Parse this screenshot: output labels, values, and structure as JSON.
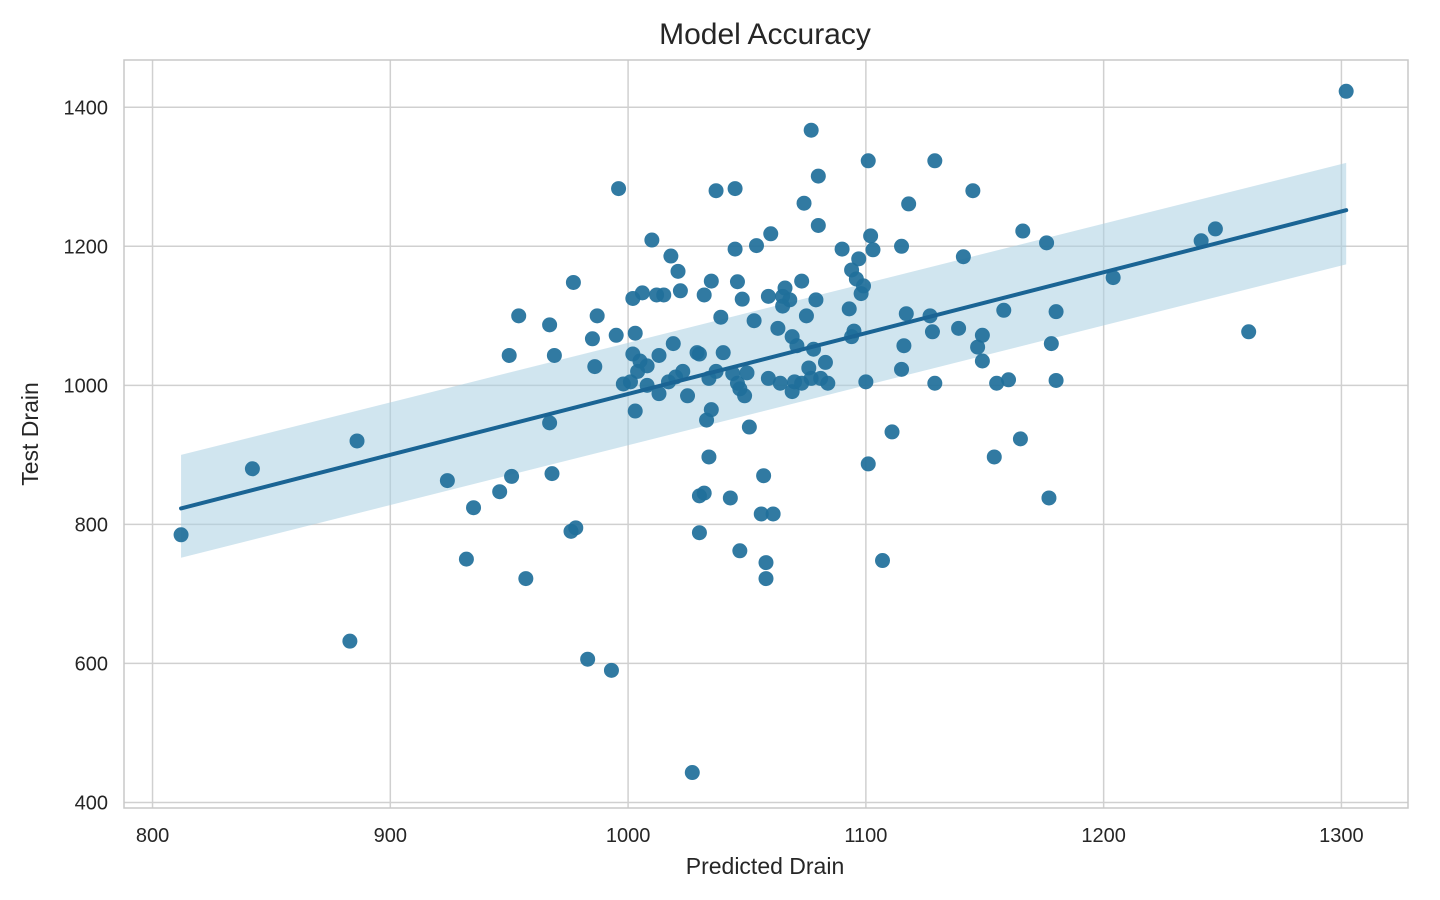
{
  "chart_data": {
    "type": "scatter",
    "title": "Model Accuracy",
    "xlabel": "Predicted Drain",
    "ylabel": "Test Drain",
    "xlim": [
      788,
      1328
    ],
    "ylim": [
      392,
      1468
    ],
    "x_ticks": [
      800,
      900,
      1000,
      1100,
      1200,
      1300
    ],
    "y_ticks": [
      400,
      600,
      800,
      1000,
      1200,
      1400
    ],
    "grid": true,
    "colors": {
      "points": "#1f6f9a",
      "regression_line": "#1a6494",
      "confidence_band": "#a9cfe2",
      "grid": "#d0d0d0",
      "frame": "#c8c8c8"
    },
    "regression": {
      "x": [
        812,
        1302
      ],
      "y": [
        823,
        1252
      ],
      "ci_upper": [
        900,
        1320
      ],
      "ci_lower": [
        752,
        1174
      ]
    },
    "points": [
      [
        812,
        785
      ],
      [
        842,
        880
      ],
      [
        883,
        632
      ],
      [
        886,
        920
      ],
      [
        924,
        863
      ],
      [
        932,
        750
      ],
      [
        935,
        824
      ],
      [
        946,
        847
      ],
      [
        951,
        869
      ],
      [
        950,
        1043
      ],
      [
        954,
        1100
      ],
      [
        957,
        722
      ],
      [
        967,
        946
      ],
      [
        967,
        1087
      ],
      [
        968,
        873
      ],
      [
        969,
        1043
      ],
      [
        976,
        790
      ],
      [
        977,
        1148
      ],
      [
        978,
        795
      ],
      [
        983,
        606
      ],
      [
        985,
        1067
      ],
      [
        986,
        1027
      ],
      [
        987,
        1100
      ],
      [
        993,
        590
      ],
      [
        995,
        1072
      ],
      [
        996,
        1283
      ],
      [
        998,
        1002
      ],
      [
        1001,
        1005
      ],
      [
        1002,
        1045
      ],
      [
        1002,
        1125
      ],
      [
        1003,
        963
      ],
      [
        1003,
        1075
      ],
      [
        1004,
        1020
      ],
      [
        1005,
        1035
      ],
      [
        1006,
        1133
      ],
      [
        1008,
        1000
      ],
      [
        1008,
        1028
      ],
      [
        1010,
        1209
      ],
      [
        1012,
        1130
      ],
      [
        1013,
        1043
      ],
      [
        1013,
        988
      ],
      [
        1015,
        1130
      ],
      [
        1017,
        1005
      ],
      [
        1018,
        1186
      ],
      [
        1019,
        1060
      ],
      [
        1020,
        1012
      ],
      [
        1021,
        1164
      ],
      [
        1022,
        1136
      ],
      [
        1023,
        1020
      ],
      [
        1025,
        985
      ],
      [
        1027,
        443
      ],
      [
        1029,
        1047
      ],
      [
        1030,
        1045
      ],
      [
        1030,
        841
      ],
      [
        1030,
        788
      ],
      [
        1032,
        845
      ],
      [
        1032,
        1130
      ],
      [
        1033,
        950
      ],
      [
        1034,
        897
      ],
      [
        1034,
        1010
      ],
      [
        1035,
        965
      ],
      [
        1035,
        1150
      ],
      [
        1037,
        1020
      ],
      [
        1037,
        1280
      ],
      [
        1039,
        1098
      ],
      [
        1040,
        1047
      ],
      [
        1043,
        838
      ],
      [
        1044,
        1017
      ],
      [
        1045,
        1196
      ],
      [
        1045,
        1283
      ],
      [
        1046,
        1003
      ],
      [
        1046,
        1149
      ],
      [
        1047,
        762
      ],
      [
        1047,
        995
      ],
      [
        1048,
        1124
      ],
      [
        1049,
        985
      ],
      [
        1050,
        1018
      ],
      [
        1051,
        940
      ],
      [
        1053,
        1093
      ],
      [
        1054,
        1201
      ],
      [
        1056,
        815
      ],
      [
        1057,
        870
      ],
      [
        1058,
        722
      ],
      [
        1058,
        745
      ],
      [
        1059,
        1128
      ],
      [
        1059,
        1010
      ],
      [
        1060,
        1218
      ],
      [
        1061,
        815
      ],
      [
        1063,
        1082
      ],
      [
        1064,
        1003
      ],
      [
        1065,
        1114
      ],
      [
        1065,
        1128
      ],
      [
        1066,
        1140
      ],
      [
        1068,
        1123
      ],
      [
        1069,
        1070
      ],
      [
        1069,
        991
      ],
      [
        1070,
        1005
      ],
      [
        1071,
        1057
      ],
      [
        1073,
        1150
      ],
      [
        1073,
        1003
      ],
      [
        1074,
        1262
      ],
      [
        1075,
        1100
      ],
      [
        1076,
        1025
      ],
      [
        1077,
        1010
      ],
      [
        1077,
        1367
      ],
      [
        1078,
        1052
      ],
      [
        1079,
        1123
      ],
      [
        1080,
        1230
      ],
      [
        1080,
        1301
      ],
      [
        1081,
        1010
      ],
      [
        1083,
        1033
      ],
      [
        1084,
        1003
      ],
      [
        1090,
        1196
      ],
      [
        1093,
        1110
      ],
      [
        1094,
        1166
      ],
      [
        1094,
        1070
      ],
      [
        1095,
        1078
      ],
      [
        1096,
        1153
      ],
      [
        1097,
        1182
      ],
      [
        1098,
        1132
      ],
      [
        1099,
        1143
      ],
      [
        1100,
        1005
      ],
      [
        1101,
        887
      ],
      [
        1101,
        1323
      ],
      [
        1102,
        1215
      ],
      [
        1103,
        1195
      ],
      [
        1107,
        748
      ],
      [
        1111,
        933
      ],
      [
        1115,
        1023
      ],
      [
        1115,
        1200
      ],
      [
        1116,
        1057
      ],
      [
        1117,
        1103
      ],
      [
        1118,
        1261
      ],
      [
        1127,
        1100
      ],
      [
        1128,
        1077
      ],
      [
        1129,
        1323
      ],
      [
        1129,
        1003
      ],
      [
        1139,
        1082
      ],
      [
        1141,
        1185
      ],
      [
        1145,
        1280
      ],
      [
        1147,
        1055
      ],
      [
        1149,
        1035
      ],
      [
        1149,
        1072
      ],
      [
        1154,
        897
      ],
      [
        1155,
        1003
      ],
      [
        1158,
        1108
      ],
      [
        1160,
        1008
      ],
      [
        1165,
        923
      ],
      [
        1166,
        1222
      ],
      [
        1176,
        1205
      ],
      [
        1177,
        838
      ],
      [
        1178,
        1060
      ],
      [
        1180,
        1007
      ],
      [
        1180,
        1106
      ],
      [
        1204,
        1155
      ],
      [
        1241,
        1208
      ],
      [
        1247,
        1225
      ],
      [
        1261,
        1077
      ],
      [
        1302,
        1423
      ]
    ]
  }
}
